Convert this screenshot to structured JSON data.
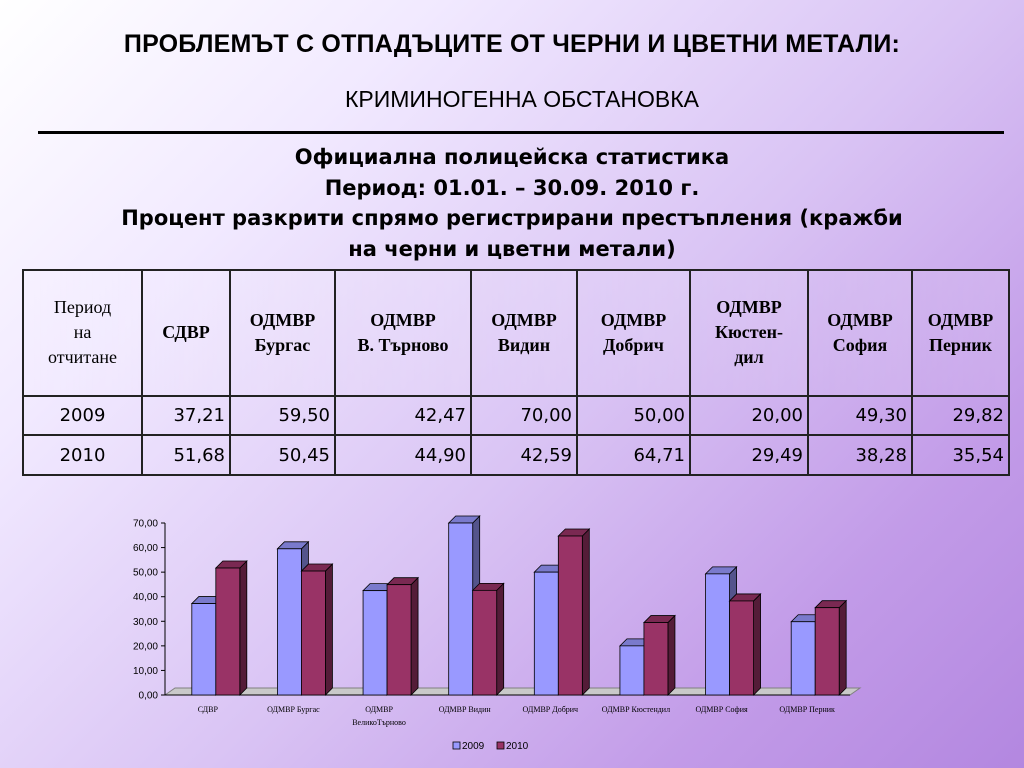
{
  "header": {
    "title": "ПРОБЛЕМЪТ С ОТПАДЪЦИТЕ ОТ ЧЕРНИ И ЦВЕТНИ МЕТАЛИ:",
    "subtitle": "КРИМИНОГЕННА ОБСТАНОВКА"
  },
  "headings": {
    "line1": "Официална полицейска статистика",
    "line2": "Период: 01.01. – 30.09. 2010 г.",
    "line3": "Процент разкрити спрямо регистрирани престъпления (кражби",
    "line4": "на черни и цветни метали)"
  },
  "table": {
    "headers": [
      [
        "Период",
        "на",
        "отчитане"
      ],
      [
        "СДВР"
      ],
      [
        "ОДМВР",
        "Бургас"
      ],
      [
        "ОДМВР",
        "В. Търново"
      ],
      [
        "ОДМВР",
        "Видин"
      ],
      [
        "ОДМВР",
        "Добрич"
      ],
      [
        "ОДМВР",
        "Кюстен-",
        "дил"
      ],
      [
        "ОДМВР",
        "София"
      ],
      [
        "ОДМВР",
        "Перник"
      ]
    ],
    "rows": [
      [
        "2009",
        "37,21",
        "59,50",
        "42,47",
        "70,00",
        "50,00",
        "20,00",
        "49,30",
        "29,82"
      ],
      [
        "2010",
        "51,68",
        "50,45",
        "44,90",
        "42,59",
        "64,71",
        "29,49",
        "38,28",
        "35,54"
      ]
    ]
  },
  "chart_data": {
    "type": "bar",
    "categories": [
      [
        "СДВР"
      ],
      [
        "ОДМВР Бургас"
      ],
      [
        "ОДМВР",
        "ВеликоТърново"
      ],
      [
        "ОДМВР Видин"
      ],
      [
        "ОДМВР Добрич"
      ],
      [
        "ОДМВР Кюстендил"
      ],
      [
        "ОДМВР София"
      ],
      [
        "ОДМВР Перник"
      ]
    ],
    "series": [
      {
        "name": "2009",
        "values": [
          37.21,
          59.5,
          42.47,
          70.0,
          50.0,
          20.0,
          49.3,
          29.82
        ],
        "color": "#9999ff"
      },
      {
        "name": "2010",
        "values": [
          51.68,
          50.45,
          44.9,
          42.59,
          64.71,
          29.49,
          38.28,
          35.54
        ],
        "color": "#993366"
      }
    ],
    "ylim": [
      0,
      70
    ],
    "yticks": [
      "0,00",
      "10,00",
      "20,00",
      "30,00",
      "40,00",
      "50,00",
      "60,00",
      "70,00"
    ],
    "grid": false,
    "legend_position": "bottom",
    "style": "3d-clustered-column"
  }
}
